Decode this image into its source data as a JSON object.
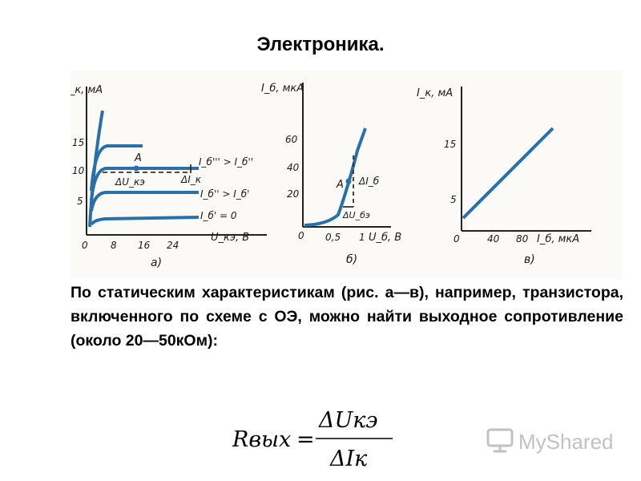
{
  "title": "Электроника.",
  "figure": {
    "a": {
      "y_unit": "I_к, мА",
      "y_ticks": [
        "15",
        "10",
        "5"
      ],
      "x_ticks": [
        "0",
        "8",
        "16",
        "24"
      ],
      "x_unit": "U_кэ, В",
      "point_label": "A",
      "delta_u": "ΔU_кэ",
      "delta_i": "ΔI_к",
      "curve_labels": [
        "I_б''' > I_б''",
        "I_б'' > I_б'",
        "I_б' = 0"
      ],
      "caption": "а)"
    },
    "b": {
      "y_unit": "I_б, мкА",
      "y_ticks": [
        "60",
        "40",
        "20"
      ],
      "x_ticks": [
        "0",
        "0,5",
        "1"
      ],
      "x_unit": "U_б, В",
      "point_label": "A",
      "delta_i": "ΔI_б",
      "delta_u": "ΔU_бэ",
      "caption": "б)"
    },
    "v": {
      "y_unit": "I_к, мА",
      "y_ticks": [
        "15",
        "5"
      ],
      "x_ticks": [
        "0",
        "40",
        "80"
      ],
      "x_unit": "I_б, мкА",
      "caption": "в)"
    }
  },
  "paragraph": "По статическим характеристикам (рис. а—в), например, транзистора, включенного по схеме с ОЭ, можно найти выходное сопротивление (около 20—50кОм):",
  "formula": {
    "lhs": "Rвых",
    "equals": "=",
    "numerator": "ΔUкэ",
    "denominator": "ΔIк"
  },
  "watermark": {
    "text": "MyShared"
  },
  "colors": {
    "curve": "#2a6fa8",
    "axis": "#222222",
    "dash": "#333333"
  }
}
